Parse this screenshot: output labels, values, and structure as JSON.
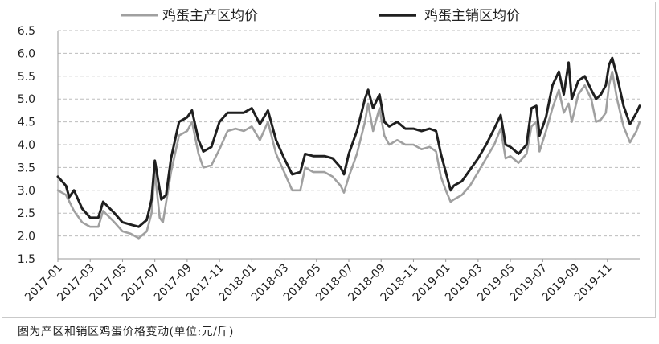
{
  "caption": "图为产区和销区鸡蛋价格变动(单位:元/斤)",
  "chart_data": {
    "type": "line",
    "title": "",
    "xlabel": "",
    "ylabel": "",
    "ylim": [
      1.5,
      6.5
    ],
    "yticks": [
      "6.5",
      "6.0",
      "5.5",
      "5.0",
      "4.5",
      "4.0",
      "3.5",
      "3.0",
      "2.5",
      "2.0",
      "1.5"
    ],
    "xticks": [
      "2017-01",
      "2017-03",
      "2017-05",
      "2017-07",
      "2017-09",
      "2017-11",
      "2018-01",
      "2018-03",
      "2018-05",
      "2018-07",
      "2018-09",
      "2018-11",
      "2019-01",
      "2019-03",
      "2019-05",
      "2019-07",
      "2019-09",
      "2019-11"
    ],
    "grid": "horizontal dashed",
    "legend_position": "top",
    "series": [
      {
        "name": "鸡蛋主产区均价",
        "color": "#a0a0a0",
        "points": [
          [
            0.0,
            3.0
          ],
          [
            0.5,
            2.9
          ],
          [
            1.0,
            2.55
          ],
          [
            1.5,
            2.3
          ],
          [
            2.0,
            2.2
          ],
          [
            2.5,
            2.2
          ],
          [
            2.8,
            2.55
          ],
          [
            3.5,
            2.3
          ],
          [
            4.0,
            2.1
          ],
          [
            4.5,
            2.05
          ],
          [
            5.0,
            1.95
          ],
          [
            5.5,
            2.1
          ],
          [
            5.8,
            2.5
          ],
          [
            6.0,
            3.4
          ],
          [
            6.3,
            2.4
          ],
          [
            6.5,
            2.3
          ],
          [
            7.0,
            3.4
          ],
          [
            7.5,
            4.2
          ],
          [
            8.0,
            4.3
          ],
          [
            8.3,
            4.5
          ],
          [
            8.7,
            3.8
          ],
          [
            9.0,
            3.5
          ],
          [
            9.5,
            3.55
          ],
          [
            10.0,
            3.9
          ],
          [
            10.5,
            4.3
          ],
          [
            11.0,
            4.35
          ],
          [
            11.5,
            4.3
          ],
          [
            12.0,
            4.4
          ],
          [
            12.5,
            4.1
          ],
          [
            13.0,
            4.5
          ],
          [
            13.5,
            3.8
          ],
          [
            14.0,
            3.4
          ],
          [
            14.5,
            3.0
          ],
          [
            15.0,
            3.0
          ],
          [
            15.3,
            3.5
          ],
          [
            15.8,
            3.4
          ],
          [
            16.5,
            3.4
          ],
          [
            17.0,
            3.3
          ],
          [
            17.5,
            3.1
          ],
          [
            17.7,
            2.95
          ],
          [
            18.0,
            3.3
          ],
          [
            18.5,
            3.8
          ],
          [
            19.0,
            4.5
          ],
          [
            19.2,
            4.9
          ],
          [
            19.5,
            4.3
          ],
          [
            19.9,
            4.8
          ],
          [
            20.2,
            4.2
          ],
          [
            20.5,
            4.0
          ],
          [
            21.0,
            4.1
          ],
          [
            21.5,
            4.0
          ],
          [
            22.0,
            4.0
          ],
          [
            22.5,
            3.9
          ],
          [
            23.0,
            3.95
          ],
          [
            23.4,
            3.85
          ],
          [
            23.7,
            3.3
          ],
          [
            24.0,
            3.0
          ],
          [
            24.3,
            2.75
          ],
          [
            24.5,
            2.8
          ],
          [
            25.0,
            2.9
          ],
          [
            25.5,
            3.1
          ],
          [
            26.0,
            3.4
          ],
          [
            26.5,
            3.7
          ],
          [
            27.0,
            4.0
          ],
          [
            27.4,
            4.35
          ],
          [
            27.7,
            3.7
          ],
          [
            28.0,
            3.75
          ],
          [
            28.5,
            3.6
          ],
          [
            29.0,
            3.8
          ],
          [
            29.3,
            4.4
          ],
          [
            29.6,
            4.5
          ],
          [
            29.8,
            3.85
          ],
          [
            30.2,
            4.3
          ],
          [
            30.6,
            4.8
          ],
          [
            31.0,
            5.2
          ],
          [
            31.3,
            4.7
          ],
          [
            31.6,
            4.9
          ],
          [
            31.8,
            4.5
          ],
          [
            32.2,
            5.1
          ],
          [
            32.6,
            5.3
          ],
          [
            33.0,
            5.0
          ],
          [
            33.3,
            4.5
          ],
          [
            33.6,
            4.55
          ],
          [
            33.9,
            4.7
          ],
          [
            34.1,
            5.3
          ],
          [
            34.3,
            5.6
          ],
          [
            34.6,
            5.0
          ],
          [
            35.0,
            4.4
          ],
          [
            35.4,
            4.05
          ],
          [
            35.8,
            4.3
          ],
          [
            36.0,
            4.5
          ]
        ]
      },
      {
        "name": "鸡蛋主销区均价",
        "color": "#1f1f1f",
        "points": [
          [
            0.0,
            3.3
          ],
          [
            0.5,
            3.1
          ],
          [
            0.7,
            2.85
          ],
          [
            1.0,
            3.0
          ],
          [
            1.5,
            2.6
          ],
          [
            2.0,
            2.4
          ],
          [
            2.5,
            2.4
          ],
          [
            2.8,
            2.75
          ],
          [
            3.5,
            2.5
          ],
          [
            4.0,
            2.3
          ],
          [
            4.5,
            2.25
          ],
          [
            5.0,
            2.2
          ],
          [
            5.5,
            2.35
          ],
          [
            5.8,
            2.8
          ],
          [
            6.0,
            3.65
          ],
          [
            6.4,
            2.8
          ],
          [
            6.7,
            2.9
          ],
          [
            7.0,
            3.7
          ],
          [
            7.5,
            4.5
          ],
          [
            8.0,
            4.6
          ],
          [
            8.3,
            4.75
          ],
          [
            8.7,
            4.1
          ],
          [
            9.0,
            3.85
          ],
          [
            9.5,
            3.95
          ],
          [
            10.0,
            4.5
          ],
          [
            10.5,
            4.7
          ],
          [
            11.0,
            4.7
          ],
          [
            11.5,
            4.7
          ],
          [
            12.0,
            4.8
          ],
          [
            12.5,
            4.45
          ],
          [
            13.0,
            4.75
          ],
          [
            13.5,
            4.1
          ],
          [
            14.0,
            3.7
          ],
          [
            14.5,
            3.35
          ],
          [
            15.0,
            3.4
          ],
          [
            15.3,
            3.8
          ],
          [
            15.8,
            3.75
          ],
          [
            16.5,
            3.75
          ],
          [
            17.0,
            3.7
          ],
          [
            17.5,
            3.5
          ],
          [
            17.7,
            3.35
          ],
          [
            18.0,
            3.8
          ],
          [
            18.5,
            4.3
          ],
          [
            19.0,
            5.0
          ],
          [
            19.2,
            5.2
          ],
          [
            19.5,
            4.8
          ],
          [
            19.9,
            5.1
          ],
          [
            20.2,
            4.5
          ],
          [
            20.5,
            4.4
          ],
          [
            21.0,
            4.5
          ],
          [
            21.5,
            4.35
          ],
          [
            22.0,
            4.35
          ],
          [
            22.5,
            4.3
          ],
          [
            23.0,
            4.35
          ],
          [
            23.4,
            4.3
          ],
          [
            23.7,
            3.8
          ],
          [
            24.0,
            3.4
          ],
          [
            24.3,
            3.0
          ],
          [
            24.5,
            3.1
          ],
          [
            25.0,
            3.2
          ],
          [
            25.5,
            3.45
          ],
          [
            26.0,
            3.7
          ],
          [
            26.5,
            4.0
          ],
          [
            27.0,
            4.35
          ],
          [
            27.4,
            4.65
          ],
          [
            27.7,
            4.0
          ],
          [
            28.0,
            3.95
          ],
          [
            28.5,
            3.8
          ],
          [
            29.0,
            4.0
          ],
          [
            29.3,
            4.8
          ],
          [
            29.6,
            4.85
          ],
          [
            29.8,
            4.2
          ],
          [
            30.2,
            4.6
          ],
          [
            30.6,
            5.3
          ],
          [
            31.0,
            5.6
          ],
          [
            31.3,
            5.1
          ],
          [
            31.6,
            5.8
          ],
          [
            31.8,
            5.0
          ],
          [
            32.2,
            5.4
          ],
          [
            32.6,
            5.5
          ],
          [
            33.0,
            5.2
          ],
          [
            33.3,
            5.0
          ],
          [
            33.6,
            5.1
          ],
          [
            33.9,
            5.3
          ],
          [
            34.1,
            5.75
          ],
          [
            34.3,
            5.9
          ],
          [
            34.6,
            5.5
          ],
          [
            35.0,
            4.85
          ],
          [
            35.4,
            4.45
          ],
          [
            35.8,
            4.7
          ],
          [
            36.0,
            4.85
          ]
        ]
      }
    ]
  }
}
